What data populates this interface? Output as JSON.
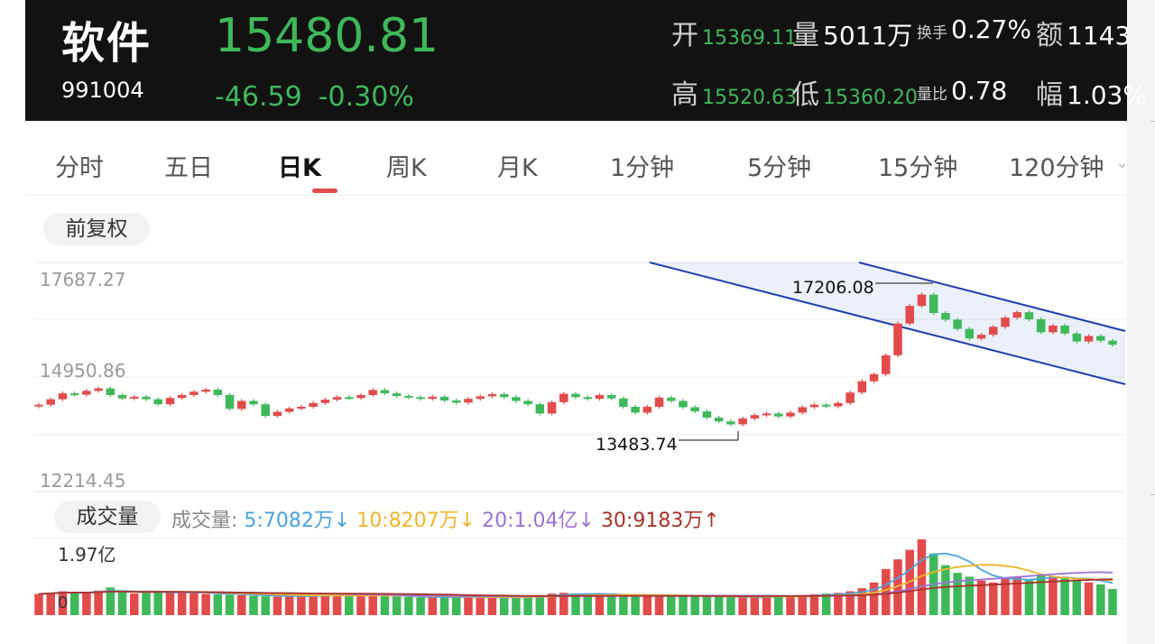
{
  "header": {
    "name": "软件",
    "code": "991004",
    "price": "15480.81",
    "change": "-46.59",
    "change_pct": "-0.30%",
    "open_label": "开",
    "open_value": "15369.11",
    "volume_label": "量",
    "volume_value": "5011万",
    "turnover_label": "换手",
    "turnover_value": "0.27%",
    "amount_label": "额",
    "amount_value": "1143",
    "high_label": "高",
    "high_value": "15520.63",
    "low_label": "低",
    "low_value": "15360.20",
    "vol_ratio_label": "量比",
    "vol_ratio_value": "0.78",
    "amplitude_label": "幅",
    "amplitude_value": "1.03%",
    "colors": {
      "down": "#3fb85a",
      "up": "#e24b4b",
      "background": "#121212"
    }
  },
  "tabs": [
    {
      "label": "分时"
    },
    {
      "label": "五日"
    },
    {
      "label": "日K",
      "active": true
    },
    {
      "label": "周K"
    },
    {
      "label": "月K"
    },
    {
      "label": "1分钟"
    },
    {
      "label": "5分钟"
    },
    {
      "label": "15分钟"
    },
    {
      "label": "120分钟"
    }
  ],
  "adjust_label": "前复权",
  "volume_pill_label": "成交量",
  "volume_legend": {
    "label": "成交量:",
    "ma5": "5:7082万↓",
    "ma10": "10:8207万↓",
    "ma20": "20:1.04亿↓",
    "ma30": "30:9183万↑",
    "colors": {
      "ma5": "#4aa3df",
      "ma10": "#f0b429",
      "ma20": "#9b72d6",
      "ma30": "#a8322a"
    }
  },
  "chart_data": {
    "type": "candlestick",
    "y_ticks": [
      "17687.27",
      "14950.86",
      "12214.45"
    ],
    "y_range": [
      12214.45,
      17687.27
    ],
    "annotations": {
      "high": "17206.08",
      "low": "13483.74"
    },
    "closes": [
      14290,
      14420,
      14560,
      14530,
      14620,
      14680,
      14520,
      14440,
      14480,
      14420,
      14300,
      14450,
      14520,
      14600,
      14650,
      14520,
      14190,
      14380,
      14300,
      14020,
      14120,
      14200,
      14240,
      14330,
      14410,
      14470,
      14450,
      14520,
      14640,
      14560,
      14500,
      14470,
      14430,
      14480,
      14390,
      14340,
      14430,
      14490,
      14540,
      14470,
      14380,
      14300,
      14080,
      14350,
      14550,
      14470,
      14430,
      14520,
      14440,
      14240,
      14100,
      14240,
      14460,
      14380,
      14230,
      14130,
      13980,
      13890,
      13820,
      13960,
      14040,
      14080,
      14010,
      14100,
      14230,
      14290,
      14250,
      14330,
      14580,
      14850,
      15020,
      15470,
      16230,
      16650,
      16920,
      16480,
      16320,
      16100,
      15870,
      15960,
      16150,
      16370,
      16500,
      16330,
      16020,
      16180,
      15990,
      15800,
      15930,
      15820,
      15720
    ],
    "volume_label": "1.97亿",
    "volume_zero": "0",
    "volume_max": 1.97,
    "volumes": [
      0.55,
      0.58,
      0.62,
      0.6,
      0.58,
      0.64,
      0.72,
      0.6,
      0.56,
      0.58,
      0.62,
      0.6,
      0.59,
      0.57,
      0.55,
      0.54,
      0.53,
      0.52,
      0.5,
      0.49,
      0.48,
      0.5,
      0.51,
      0.5,
      0.52,
      0.53,
      0.54,
      0.52,
      0.5,
      0.49,
      0.48,
      0.47,
      0.46,
      0.47,
      0.48,
      0.47,
      0.46,
      0.45,
      0.46,
      0.47,
      0.48,
      0.5,
      0.52,
      0.56,
      0.58,
      0.56,
      0.54,
      0.53,
      0.52,
      0.5,
      0.48,
      0.49,
      0.5,
      0.51,
      0.5,
      0.49,
      0.48,
      0.47,
      0.46,
      0.47,
      0.48,
      0.49,
      0.48,
      0.5,
      0.52,
      0.54,
      0.56,
      0.58,
      0.62,
      0.7,
      0.85,
      1.2,
      1.45,
      1.7,
      1.97,
      1.6,
      1.3,
      1.1,
      1.0,
      0.9,
      0.85,
      0.95,
      1.0,
      0.9,
      1.05,
      1.0,
      0.95,
      0.9,
      0.85,
      0.8,
      0.68
    ],
    "ma_colors": {
      "ma5": "#4aa3df",
      "ma10": "#f0b429",
      "ma20": "#9b72d6",
      "ma30": "#a8322a"
    }
  }
}
